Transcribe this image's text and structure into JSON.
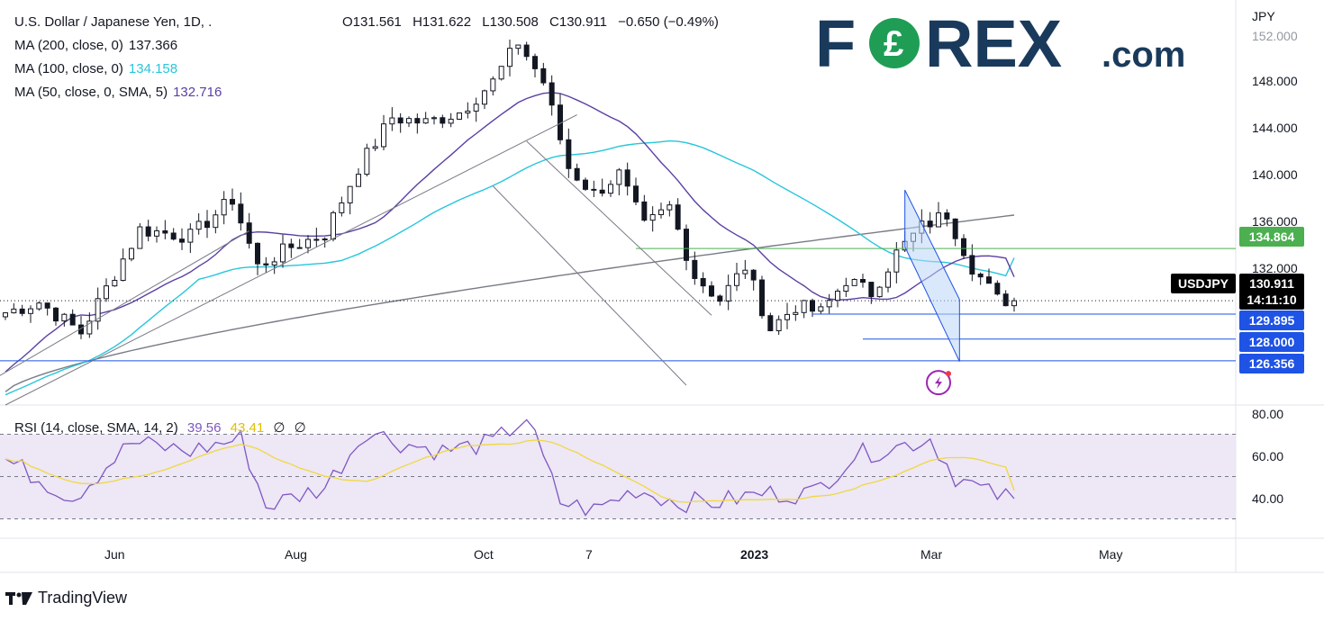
{
  "header": {
    "symbol_title": "U.S. Dollar / Japanese Yen, 1D, .",
    "ohlc": {
      "open": "O131.561",
      "high": "H131.622",
      "low": "L130.508",
      "close": "C130.911",
      "change": "−0.650 (−0.49%)"
    }
  },
  "legend": [
    {
      "label": "MA (200, close, 0)",
      "value": "137.366",
      "color": "#131722"
    },
    {
      "label": "MA (100, close, 0)",
      "value": "134.158",
      "color": "#26c6da"
    },
    {
      "label": "MA (50, close, 0, SMA, 5)",
      "value": "132.716",
      "color": "#5b3fa3"
    }
  ],
  "brand": {
    "logo_text": "FOREX.com",
    "color": "#1a3a5c"
  },
  "price_axis": {
    "currency": "JPY",
    "ticks": [
      "152.000",
      "148.000",
      "144.000",
      "140.000",
      "136.000",
      "132.000"
    ]
  },
  "price_tags": [
    {
      "value": "134.864",
      "color": "#4caf50"
    },
    {
      "value": "130.911",
      "color": "#000000"
    },
    {
      "value": "14:11:10",
      "color": "#000000"
    },
    {
      "value": "129.895",
      "color": "#1e53e5"
    },
    {
      "value": "128.000",
      "color": "#1e53e5"
    },
    {
      "value": "126.356",
      "color": "#1e53e5"
    }
  ],
  "symbol_tag": "USDJPY",
  "rsi_legend": {
    "label": "RSI (14, close, SMA, 14, 2)",
    "rsi": "39.56",
    "sma": "43.41",
    "extra1": "∅",
    "extra2": "∅"
  },
  "rsi_axis": {
    "ticks": [
      "80.00",
      "60.00",
      "40.00"
    ]
  },
  "time_axis": {
    "labels": [
      "Jun",
      "Aug",
      "Oct",
      "7",
      "2023",
      "Mar",
      "May"
    ]
  },
  "footer": {
    "brand": "TradingView"
  },
  "colors": {
    "up": "#131722",
    "down": "#131722",
    "ma200": "#787b86",
    "ma100": "#26c6da",
    "ma50": "#5b3fa3",
    "rsi": "#7e57c2",
    "rsi_sma": "#f0d840",
    "rsi_band": "#ede7f6",
    "support": "#1e53e5",
    "resistance": "#4caf50",
    "channel": "#1e53e5"
  },
  "chart_data": {
    "type": "candlestick",
    "title": "U.S. Dollar / Japanese Yen, 1D",
    "ylabel": "JPY",
    "ylim": [
      123,
      152
    ],
    "x_labels": [
      "Jun",
      "Aug",
      "Oct",
      "7",
      "2023",
      "Mar",
      "May"
    ],
    "close_series": [
      {
        "t": 0,
        "v": 130.0
      },
      {
        "t": 4,
        "v": 130.8
      },
      {
        "t": 9,
        "v": 128.5
      },
      {
        "t": 16,
        "v": 136.3
      },
      {
        "t": 22,
        "v": 135.8
      },
      {
        "t": 27,
        "v": 138.6
      },
      {
        "t": 30,
        "v": 133.5
      },
      {
        "t": 34,
        "v": 135.0
      },
      {
        "t": 38,
        "v": 136.0
      },
      {
        "t": 42,
        "v": 141.0
      },
      {
        "t": 46,
        "v": 144.8
      },
      {
        "t": 50,
        "v": 144.4
      },
      {
        "t": 54,
        "v": 145.2
      },
      {
        "t": 58,
        "v": 147.5
      },
      {
        "t": 61,
        "v": 150.5
      },
      {
        "t": 64,
        "v": 147.5
      },
      {
        "t": 67,
        "v": 141.0
      },
      {
        "t": 70,
        "v": 139.0
      },
      {
        "t": 73,
        "v": 140.5
      },
      {
        "t": 76,
        "v": 136.5
      },
      {
        "t": 79,
        "v": 138.0
      },
      {
        "t": 82,
        "v": 132.8
      },
      {
        "t": 85,
        "v": 131.0
      },
      {
        "t": 88,
        "v": 133.5
      },
      {
        "t": 91,
        "v": 128.8
      },
      {
        "t": 94,
        "v": 130.5
      },
      {
        "t": 97,
        "v": 130.0
      },
      {
        "t": 100,
        "v": 132.5
      },
      {
        "t": 103,
        "v": 131.5
      },
      {
        "t": 106,
        "v": 134.5
      },
      {
        "t": 109,
        "v": 136.5
      },
      {
        "t": 112,
        "v": 137.5
      },
      {
        "t": 115,
        "v": 133.5
      },
      {
        "t": 118,
        "v": 131.0
      },
      {
        "t": 120,
        "v": 130.911
      }
    ],
    "moving_averages": [
      {
        "name": "MA (200, close, 0)",
        "last": 137.366
      },
      {
        "name": "MA (100, close, 0)",
        "last": 134.158
      },
      {
        "name": "MA (50, close, 0, SMA, 5)",
        "last": 132.716
      }
    ],
    "horizontal_levels": [
      134.864,
      129.895,
      128.0,
      126.356
    ],
    "rsi": {
      "ylim": [
        20,
        80
      ],
      "bands": [
        30,
        50,
        70
      ],
      "last_rsi": 39.56,
      "last_sma": 43.41,
      "series": [
        {
          "t": 0,
          "v": 58
        },
        {
          "t": 8,
          "v": 40
        },
        {
          "t": 15,
          "v": 66
        },
        {
          "t": 22,
          "v": 62
        },
        {
          "t": 28,
          "v": 68
        },
        {
          "t": 31,
          "v": 36
        },
        {
          "t": 38,
          "v": 45
        },
        {
          "t": 43,
          "v": 72
        },
        {
          "t": 47,
          "v": 66
        },
        {
          "t": 52,
          "v": 62
        },
        {
          "t": 58,
          "v": 66
        },
        {
          "t": 62,
          "v": 78
        },
        {
          "t": 66,
          "v": 38
        },
        {
          "t": 70,
          "v": 34
        },
        {
          "t": 75,
          "v": 44
        },
        {
          "t": 80,
          "v": 38
        },
        {
          "t": 85,
          "v": 38
        },
        {
          "t": 90,
          "v": 42
        },
        {
          "t": 96,
          "v": 42
        },
        {
          "t": 101,
          "v": 60
        },
        {
          "t": 106,
          "v": 64
        },
        {
          "t": 110,
          "v": 68
        },
        {
          "t": 113,
          "v": 50
        },
        {
          "t": 117,
          "v": 42
        },
        {
          "t": 120,
          "v": 39.56
        }
      ]
    }
  }
}
